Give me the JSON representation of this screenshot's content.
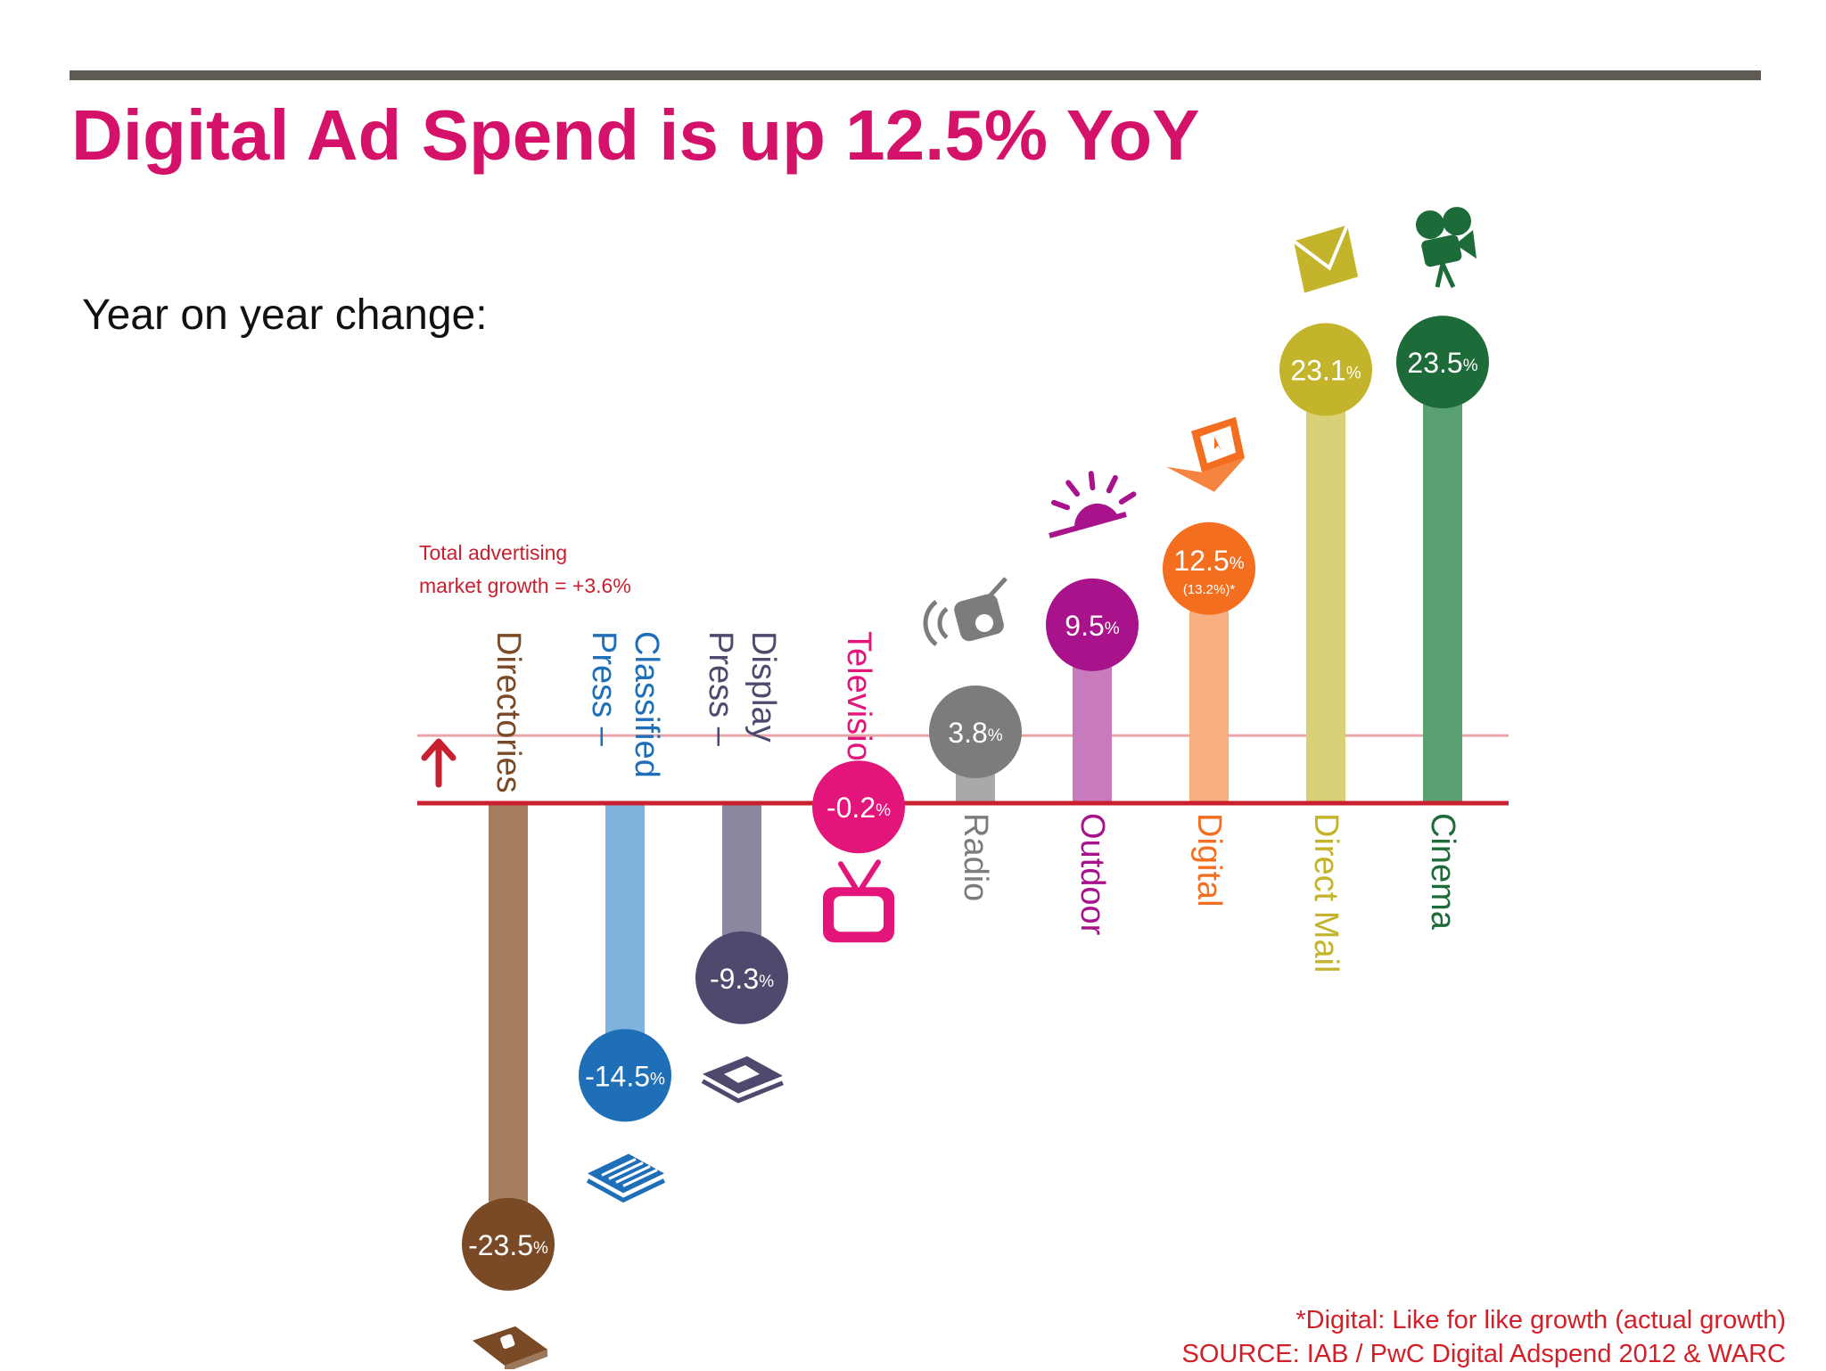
{
  "slide": {
    "title": "Digital Ad Spend is up 12.5% YoY",
    "subtitle": "Year on year change:"
  },
  "footnote": {
    "line1": "*Digital: Like for like growth (actual growth)",
    "line2": "SOURCE: IAB / PwC Digital Adspend 2012 & WARC"
  },
  "chart_data": {
    "type": "bar",
    "title": "",
    "xlabel": "",
    "ylabel": "",
    "ylim": [
      -23.5,
      23.5
    ],
    "annotation": {
      "line1": "Total advertising",
      "line2": "market growth = +3.6%",
      "value": 3.6
    },
    "categories": [
      "Directories",
      "Press – Classified",
      "Press – Display",
      "Television",
      "Radio",
      "Outdoor",
      "Digital",
      "Direct Mail",
      "Cinema"
    ],
    "values": [
      -23.5,
      -14.5,
      -9.3,
      -0.2,
      3.8,
      9.5,
      12.5,
      23.1,
      23.5
    ],
    "value_labels": [
      "-23.5",
      "-14.5",
      "-9.3",
      "-0.2",
      "3.8",
      "9.5",
      "12.5",
      "23.1",
      "23.5"
    ],
    "percent_sign": "%",
    "digital_actual_label": "(13.2%)*",
    "colors": [
      "#7a4a26",
      "#1f6fb8",
      "#4d4a6e",
      "#e3157a",
      "#7c7c7c",
      "#a8138c",
      "#f36f1f",
      "#c4b42c",
      "#1e6b3a"
    ],
    "bar_colors": [
      "#a57e5f",
      "#7fb3dd",
      "#8a889e",
      "#f28fbe",
      "#a9a9a9",
      "#c77bbd",
      "#f7ae80",
      "#d9cf77",
      "#5aa172"
    ],
    "icons": [
      "phone-book-icon",
      "newspaper-icon",
      "magazine-icon",
      "television-icon",
      "radio-icon",
      "sunrise-icon",
      "laptop-icon",
      "envelope-icon",
      "film-camera-icon"
    ],
    "axis_color": "#c8202e",
    "reference_line_color": "#e8a4a6"
  }
}
